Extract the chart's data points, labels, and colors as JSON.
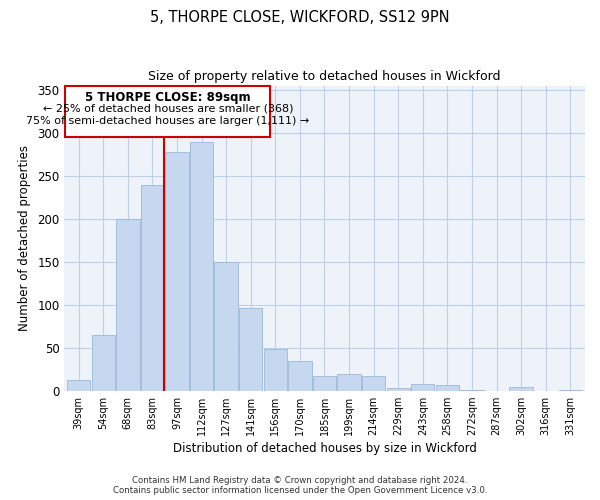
{
  "title": "5, THORPE CLOSE, WICKFORD, SS12 9PN",
  "subtitle": "Size of property relative to detached houses in Wickford",
  "xlabel": "Distribution of detached houses by size in Wickford",
  "ylabel": "Number of detached properties",
  "bar_labels": [
    "39sqm",
    "54sqm",
    "68sqm",
    "83sqm",
    "97sqm",
    "112sqm",
    "127sqm",
    "141sqm",
    "156sqm",
    "170sqm",
    "185sqm",
    "199sqm",
    "214sqm",
    "229sqm",
    "243sqm",
    "258sqm",
    "272sqm",
    "287sqm",
    "302sqm",
    "316sqm",
    "331sqm"
  ],
  "bar_values": [
    13,
    65,
    200,
    239,
    278,
    290,
    150,
    97,
    49,
    35,
    18,
    20,
    18,
    4,
    8,
    7,
    2,
    0,
    5,
    0,
    2
  ],
  "bar_color": "#c5d8f0",
  "bar_edge_color": "#9ab8d8",
  "vline_color": "#cc0000",
  "ylim": [
    0,
    355
  ],
  "yticks": [
    0,
    50,
    100,
    150,
    200,
    250,
    300,
    350
  ],
  "annotation_title": "5 THORPE CLOSE: 89sqm",
  "annotation_line1": "← 25% of detached houses are smaller (368)",
  "annotation_line2": "75% of semi-detached houses are larger (1,111) →",
  "footer_line1": "Contains HM Land Registry data © Crown copyright and database right 2024.",
  "footer_line2": "Contains public sector information licensed under the Open Government Licence v3.0.",
  "background_color": "#ffffff",
  "plot_bg_color": "#eef3fa",
  "grid_color": "#c0cfe8"
}
